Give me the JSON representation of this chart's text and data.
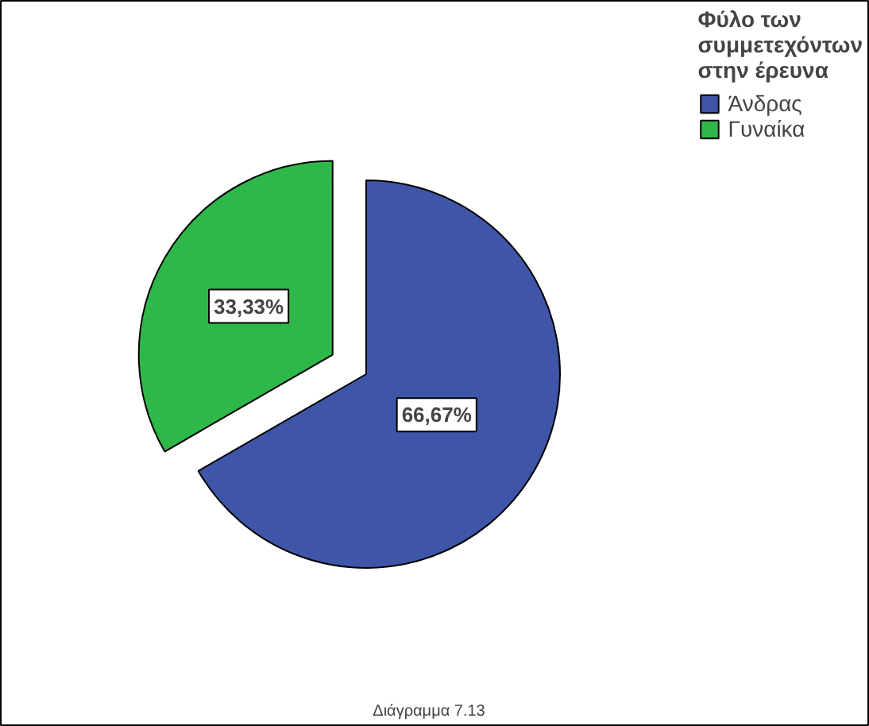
{
  "chart_data": {
    "type": "pie",
    "categories": [
      "Άνδρας",
      "Γυναίκα"
    ],
    "values": [
      66.67,
      33.33
    ],
    "colors": [
      "#3f55a8",
      "#2fb84a"
    ],
    "value_labels": [
      "66,67%",
      "33,33%"
    ],
    "legend_title": "Φύλο των συμμετεχόντων στην έρευνα",
    "legend": "top right",
    "annotations": [
      "Διάγραμμα 7.13"
    ]
  }
}
